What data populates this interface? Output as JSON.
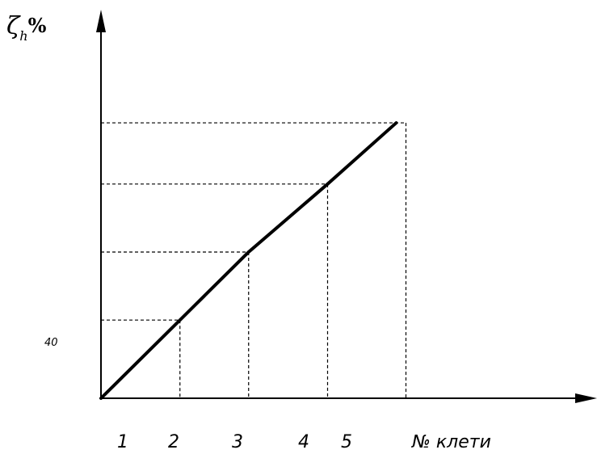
{
  "chart_data": {
    "type": "line",
    "title": "",
    "ylabel": {
      "symbol": "ζ",
      "subscript": "h",
      "unit": "%"
    },
    "xlabel": "№ клети",
    "y_tick_note": "40",
    "categories": [
      "1",
      "2",
      "3",
      "4",
      "5"
    ],
    "series": [
      {
        "x": [
          0,
          2.3,
          4.3,
          6.6,
          8.6
        ],
        "y": [
          0,
          2.3,
          4.3,
          6.3,
          8.1
        ]
      }
    ],
    "dashed_guides": [
      {
        "x": 2.3,
        "y": 2.3
      },
      {
        "x": 4.3,
        "y": 4.3
      },
      {
        "x": 6.6,
        "y": 6.3
      },
      {
        "x": 8.6,
        "y": 8.1
      }
    ],
    "xlim": [
      0,
      14
    ],
    "ylim": [
      0,
      11
    ],
    "grid": false,
    "legend": "none",
    "colors": {
      "line": "#000000",
      "axis": "#000000"
    }
  }
}
